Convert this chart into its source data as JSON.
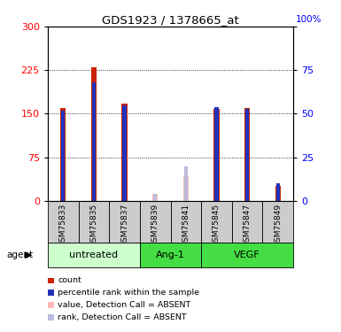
{
  "title": "GDS1923 / 1378665_at",
  "samples": [
    "GSM75833",
    "GSM75835",
    "GSM75837",
    "GSM75839",
    "GSM75841",
    "GSM75845",
    "GSM75847",
    "GSM75849"
  ],
  "count_values": [
    160,
    230,
    168,
    null,
    null,
    158,
    160,
    25
  ],
  "rank_values": [
    52,
    68,
    55,
    null,
    null,
    54,
    53,
    10
  ],
  "absent_count": [
    null,
    null,
    null,
    12,
    42,
    null,
    null,
    null
  ],
  "absent_rank": [
    null,
    null,
    null,
    4,
    20,
    null,
    null,
    null
  ],
  "left_yticks": [
    0,
    75,
    150,
    225,
    300
  ],
  "right_yticks": [
    0,
    25,
    50,
    75,
    100
  ],
  "bar_color_count": "#cc2200",
  "bar_color_rank": "#2233bb",
  "bar_color_absent_count": "#ffbbbb",
  "bar_color_absent_rank": "#bbbbdd",
  "count_bar_width": 0.18,
  "rank_bar_width": 0.12,
  "absent_count_bar_width": 0.18,
  "absent_rank_bar_width": 0.12,
  "groups": [
    {
      "name": "untreated",
      "start": 0,
      "end": 2,
      "color": "#ccffcc"
    },
    {
      "name": "Ang-1",
      "start": 3,
      "end": 4,
      "color": "#44dd44"
    },
    {
      "name": "VEGF",
      "start": 5,
      "end": 7,
      "color": "#44dd44"
    }
  ],
  "legend_items": [
    {
      "label": "count",
      "color": "#cc2200"
    },
    {
      "label": "percentile rank within the sample",
      "color": "#2233bb"
    },
    {
      "label": "value, Detection Call = ABSENT",
      "color": "#ffbbbb"
    },
    {
      "label": "rank, Detection Call = ABSENT",
      "color": "#bbbbdd"
    }
  ]
}
